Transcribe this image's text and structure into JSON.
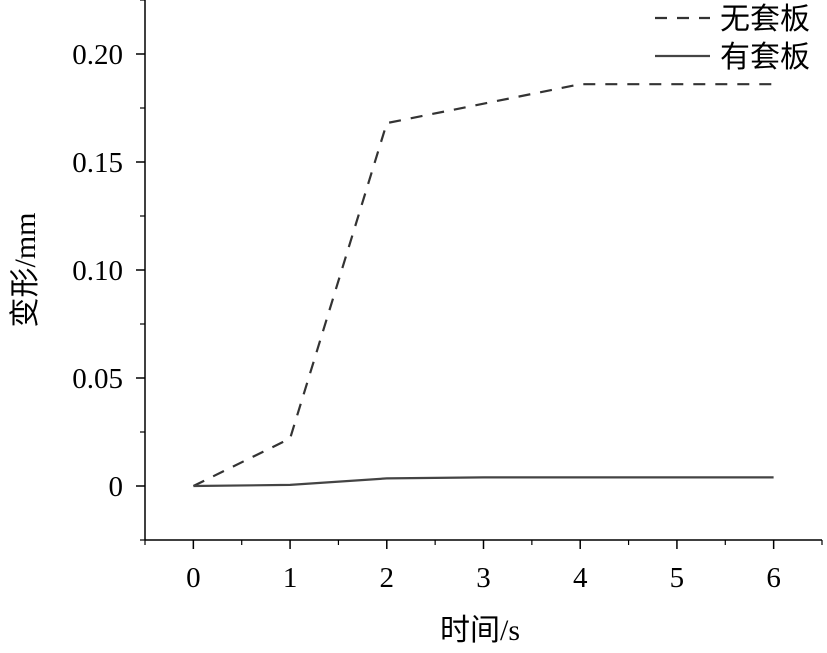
{
  "chart_data": {
    "type": "line",
    "title": "",
    "xlabel": "时间/s",
    "ylabel": "变形/mm",
    "xlim": [
      -0.5,
      6.5
    ],
    "ylim": [
      -0.025,
      0.225
    ],
    "x_ticks": [
      0,
      1,
      2,
      3,
      4,
      5,
      6
    ],
    "x_tick_labels": [
      "0",
      "1",
      "2",
      "3",
      "4",
      "5",
      "6"
    ],
    "y_ticks": [
      0,
      0.05,
      0.1,
      0.15,
      0.2
    ],
    "y_tick_labels": [
      "0",
      "0.05",
      "0.10",
      "0.15",
      "0.20"
    ],
    "grid": false,
    "legend_position": "top-right",
    "series": [
      {
        "name": "无套板",
        "style": "dashed",
        "color": "#333333",
        "x": [
          0,
          1,
          2,
          3,
          4,
          5,
          6
        ],
        "values": [
          0,
          0.022,
          0.168,
          0.177,
          0.186,
          0.186,
          0.186
        ]
      },
      {
        "name": "有套板",
        "style": "solid",
        "color": "#444444",
        "x": [
          0,
          1,
          2,
          3,
          4,
          5,
          6
        ],
        "values": [
          0,
          0.0005,
          0.0035,
          0.004,
          0.004,
          0.004,
          0.004
        ]
      }
    ]
  }
}
